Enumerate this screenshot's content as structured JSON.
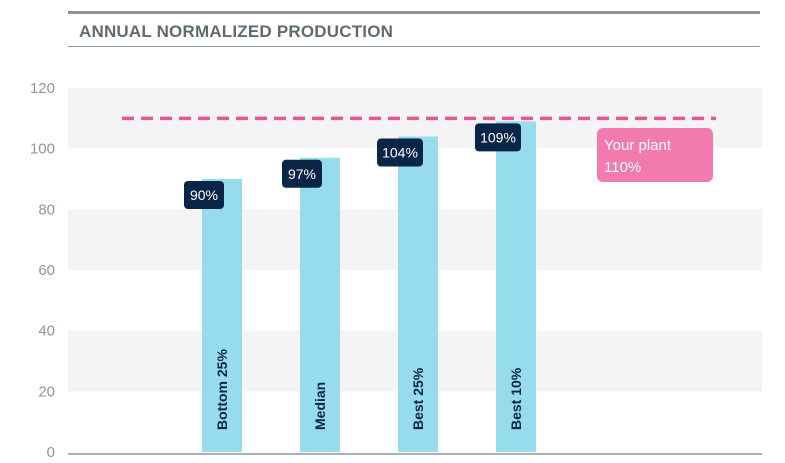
{
  "title": "ANNUAL NORMALIZED PRODUCTION",
  "chart_data": {
    "type": "bar",
    "categories": [
      "Bottom 25%",
      "Median",
      "Best 25%",
      "Best 10%"
    ],
    "values": [
      90,
      97,
      104,
      109
    ],
    "value_labels": [
      "90%",
      "97%",
      "104%",
      "109%"
    ],
    "yticks": [
      0,
      20,
      40,
      60,
      80,
      100,
      120
    ],
    "ylim": [
      0,
      120
    ],
    "reference": {
      "value": 110,
      "label_line1": "Your plant",
      "label_line2": "110%",
      "style": "dashed"
    },
    "grid": "alternating bands",
    "colors": {
      "bar": "#96dced",
      "badge": "#0b2548",
      "reference": "#e8559b",
      "reference_box": "#f27aae",
      "band": "#f4f4f5",
      "axis_text": "#8e969c"
    }
  }
}
